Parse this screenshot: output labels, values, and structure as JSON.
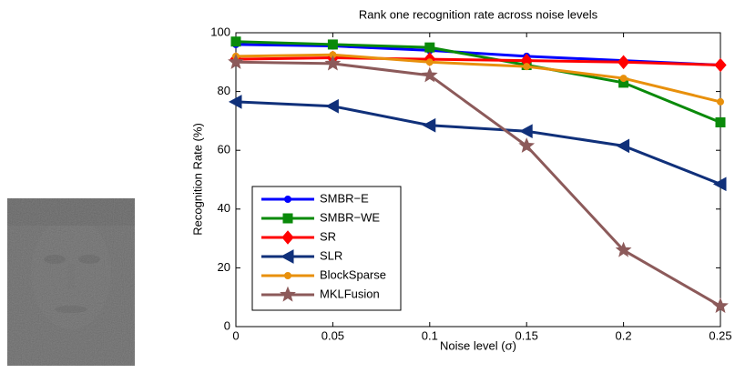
{
  "chart_data": {
    "type": "line",
    "title": "Rank one recognition rate across noise levels",
    "x_label": "Noise level (σ)",
    "y_label": "Recognition Rate (%)",
    "x": [
      0,
      0.05,
      0.1,
      0.15,
      0.2,
      0.25
    ],
    "xlim": [
      0,
      0.25
    ],
    "xticks": [
      0,
      0.05,
      0.1,
      0.15,
      0.2,
      0.25
    ],
    "ylim": [
      0,
      100
    ],
    "yticks": [
      0,
      20,
      40,
      60,
      80,
      100
    ],
    "grid": false,
    "legend": "lower left",
    "series": [
      {
        "name": "SMBR−E",
        "color": "#0000ff",
        "marker": "circle",
        "values": [
          96,
          95.5,
          94,
          92,
          90.5,
          89
        ]
      },
      {
        "name": "SMBR−WE",
        "color": "#0a8a0a",
        "marker": "square",
        "values": [
          97,
          96,
          95,
          89,
          83,
          69.5
        ]
      },
      {
        "name": "SR",
        "color": "#ff0000",
        "marker": "diamond",
        "values": [
          91,
          91.5,
          91,
          90.5,
          90,
          89
        ]
      },
      {
        "name": "SLR",
        "color": "#10307a",
        "marker": "triangle-left",
        "values": [
          76.5,
          75,
          68.5,
          66.5,
          61.5,
          48.5
        ]
      },
      {
        "name": "BlockSparse",
        "color": "#e8900c",
        "marker": "circle",
        "values": [
          92,
          92.5,
          90,
          88.5,
          84.5,
          76.5
        ]
      },
      {
        "name": "MKLFusion",
        "color": "#8c5a5a",
        "marker": "star",
        "values": [
          90,
          89.5,
          85.5,
          61.5,
          26,
          7
        ]
      }
    ]
  }
}
